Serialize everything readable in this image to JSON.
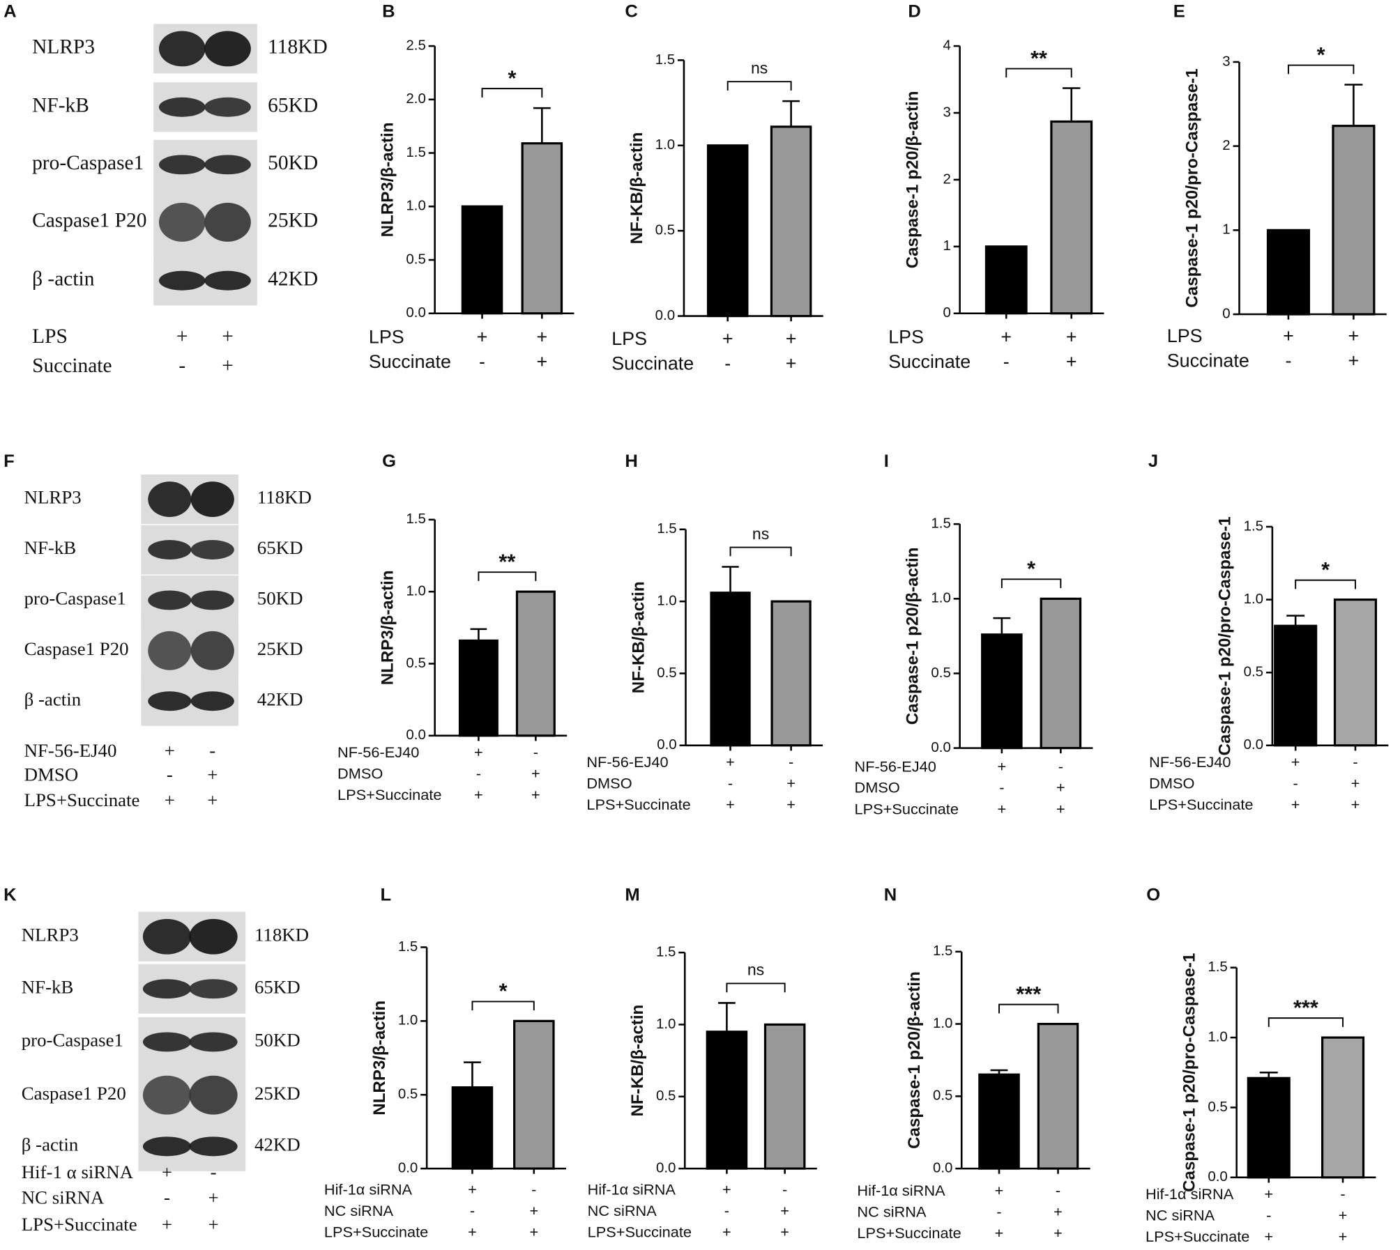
{
  "blots": [
    {
      "letter": "A",
      "proteins": [
        {
          "name": "NLRP3",
          "size": "118KD"
        },
        {
          "name": "NF-kB",
          "size": "65KD"
        },
        {
          "name": "pro-Caspase1",
          "size": "50KD"
        },
        {
          "name": "Caspase1 P20",
          "size": "25KD"
        },
        {
          "name": "β -actin",
          "size": "42KD"
        }
      ],
      "conditions": [
        {
          "name": "LPS",
          "signs": [
            "+",
            "+"
          ]
        },
        {
          "name": "Succinate",
          "signs": [
            "-",
            "+"
          ]
        }
      ]
    },
    {
      "letter": "F",
      "proteins": [
        {
          "name": "NLRP3",
          "size": "118KD"
        },
        {
          "name": "NF-kB",
          "size": "65KD"
        },
        {
          "name": "pro-Caspase1",
          "size": "50KD"
        },
        {
          "name": "Caspase1 P20",
          "size": "25KD"
        },
        {
          "name": "β -actin",
          "size": "42KD"
        }
      ],
      "conditions": [
        {
          "name": "NF-56-EJ40",
          "signs": [
            "+",
            "-"
          ]
        },
        {
          "name": "DMSO",
          "signs": [
            "-",
            "+"
          ]
        },
        {
          "name": "LPS+Succinate",
          "signs": [
            "+",
            "+"
          ]
        }
      ]
    },
    {
      "letter": "K",
      "proteins": [
        {
          "name": "NLRP3",
          "size": "118KD"
        },
        {
          "name": "NF-kB",
          "size": "65KD"
        },
        {
          "name": "pro-Caspase1",
          "size": "50KD"
        },
        {
          "name": "Caspase1 P20",
          "size": "25KD"
        },
        {
          "name": "β -actin",
          "size": "42KD"
        }
      ],
      "conditions": [
        {
          "name": "Hif-1 α siRNA",
          "signs": [
            "+",
            "-"
          ]
        },
        {
          "name": "NC siRNA",
          "signs": [
            "-",
            "+"
          ]
        },
        {
          "name": "LPS+Succinate",
          "signs": [
            "+",
            "+"
          ]
        }
      ]
    }
  ],
  "chart_data": [
    {
      "type": "bar",
      "letter": "B",
      "ylabel": "NLRP3/β-actin",
      "values": [
        1,
        1.59
      ],
      "errors": [
        null,
        0.33
      ],
      "colors": [
        "#000000",
        "#999999"
      ],
      "ylim": [
        0,
        2.5
      ],
      "yticks": [
        {
          "value": 0,
          "label": "0.0"
        },
        0.5,
        {
          "value": 1,
          "label": "1.0"
        },
        1.5,
        {
          "value": 2,
          "label": "2.0"
        },
        2.5
      ],
      "significance": "*",
      "conditions": [
        {
          "name": "LPS",
          "signs": [
            "+",
            "+"
          ]
        },
        {
          "name": "Succinate",
          "signs": [
            "-",
            "+"
          ]
        }
      ]
    },
    {
      "type": "bar",
      "letter": "C",
      "ylabel": "NF-KB/β-actin",
      "values": [
        1,
        1.11
      ],
      "errors": [
        null,
        0.15
      ],
      "colors": [
        "#000000",
        "#999999"
      ],
      "ylim": [
        0,
        1.5
      ],
      "yticks": [
        {
          "value": 0,
          "label": "0.0"
        },
        0.5,
        {
          "value": 1,
          "label": "1.0"
        },
        1.5
      ],
      "significance": "ns",
      "conditions": [
        {
          "name": "LPS",
          "signs": [
            "+",
            "+"
          ]
        },
        {
          "name": "Succinate",
          "signs": [
            "-",
            "+"
          ]
        }
      ]
    },
    {
      "type": "bar",
      "letter": "D",
      "ylabel": "Caspase-1 p20/β-actin",
      "values": [
        1,
        2.87
      ],
      "errors": [
        null,
        0.5
      ],
      "colors": [
        "#000000",
        "#999999"
      ],
      "ylim": [
        0,
        4
      ],
      "yticks": [
        0,
        1,
        2,
        3,
        4
      ],
      "significance": "**",
      "conditions": [
        {
          "name": "LPS",
          "signs": [
            "+",
            "+"
          ]
        },
        {
          "name": "Succinate",
          "signs": [
            "-",
            "+"
          ]
        }
      ]
    },
    {
      "type": "bar",
      "letter": "E",
      "ylabel": "Caspase-1 p20/pro-Caspase-1",
      "values": [
        1,
        2.24
      ],
      "errors": [
        null,
        0.49
      ],
      "colors": [
        "#000000",
        "#999999"
      ],
      "ylim": [
        0,
        3
      ],
      "yticks": [
        0,
        1,
        2,
        3
      ],
      "significance": "*",
      "conditions": [
        {
          "name": "LPS",
          "signs": [
            "+",
            "+"
          ]
        },
        {
          "name": "Succinate",
          "signs": [
            "-",
            "+"
          ]
        }
      ]
    },
    {
      "type": "bar",
      "letter": "G",
      "ylabel": "NLRP3/β-actin",
      "values": [
        0.66,
        1
      ],
      "errors": [
        0.08,
        null
      ],
      "colors": [
        "#000000",
        "#999999"
      ],
      "ylim": [
        0,
        1.5
      ],
      "yticks": [
        {
          "value": 0,
          "label": "0.0"
        },
        0.5,
        {
          "value": 1,
          "label": "1.0"
        },
        1.5
      ],
      "significance": "**",
      "conditions": [
        {
          "name": "NF-56-EJ40",
          "signs": [
            "+",
            "-"
          ]
        },
        {
          "name": "DMSO",
          "signs": [
            "-",
            "+"
          ]
        },
        {
          "name": "LPS+Succinate",
          "signs": [
            "+",
            "+"
          ]
        }
      ]
    },
    {
      "type": "bar",
      "letter": "H",
      "ylabel": "NF-KB/β-actin",
      "values": [
        1.06,
        1
      ],
      "errors": [
        0.18,
        null
      ],
      "colors": [
        "#000000",
        "#999999"
      ],
      "ylim": [
        0,
        1.5
      ],
      "yticks": [
        {
          "value": 0,
          "label": "0.0"
        },
        0.5,
        {
          "value": 1,
          "label": "1.0"
        },
        1.5
      ],
      "significance": "ns",
      "conditions": [
        {
          "name": "NF-56-EJ40",
          "signs": [
            "+",
            "-"
          ]
        },
        {
          "name": "DMSO",
          "signs": [
            "-",
            "+"
          ]
        },
        {
          "name": "LPS+Succinate",
          "signs": [
            "+",
            "+"
          ]
        }
      ]
    },
    {
      "type": "bar",
      "letter": "I",
      "ylabel": "Caspase-1 p20/β-actin",
      "values": [
        0.76,
        1
      ],
      "errors": [
        0.11,
        null
      ],
      "colors": [
        "#000000",
        "#999999"
      ],
      "ylim": [
        0,
        1.5
      ],
      "yticks": [
        {
          "value": 0,
          "label": "0.0"
        },
        0.5,
        {
          "value": 1,
          "label": "1.0"
        },
        1.5
      ],
      "significance": "*",
      "conditions": [
        {
          "name": "NF-56-EJ40",
          "signs": [
            "+",
            "-"
          ]
        },
        {
          "name": "DMSO",
          "signs": [
            "-",
            "+"
          ]
        },
        {
          "name": "LPS+Succinate",
          "signs": [
            "+",
            "+"
          ]
        }
      ]
    },
    {
      "type": "bar",
      "letter": "J",
      "ylabel": "Caspase-1 p20/pro-Caspase-1",
      "values": [
        0.82,
        1
      ],
      "errors": [
        0.07,
        null
      ],
      "colors": [
        "#000000",
        "#a6a6a6"
      ],
      "ylim": [
        0,
        1.5
      ],
      "yticks": [
        {
          "value": 0,
          "label": "0.0"
        },
        0.5,
        {
          "value": 1,
          "label": "1.0"
        },
        1.5
      ],
      "significance": "*",
      "conditions": [
        {
          "name": "NF-56-EJ40",
          "signs": [
            "+",
            "-"
          ]
        },
        {
          "name": "DMSO",
          "signs": [
            "-",
            "+"
          ]
        },
        {
          "name": "LPS+Succinate",
          "signs": [
            "+",
            "+"
          ]
        }
      ]
    },
    {
      "type": "bar",
      "letter": "L",
      "ylabel": "NLRP3/β-actin",
      "values": [
        0.55,
        1
      ],
      "errors": [
        0.17,
        null
      ],
      "colors": [
        "#000000",
        "#999999"
      ],
      "ylim": [
        0,
        1.5
      ],
      "yticks": [
        {
          "value": 0,
          "label": "0.0"
        },
        0.5,
        {
          "value": 1,
          "label": "1.0"
        },
        1.5
      ],
      "significance": "*",
      "conditions": [
        {
          "name": "Hif-1α siRNA",
          "signs": [
            "+",
            "-"
          ]
        },
        {
          "name": "NC siRNA",
          "signs": [
            "-",
            "+"
          ]
        },
        {
          "name": "LPS+Succinate",
          "signs": [
            "+",
            "+"
          ]
        }
      ]
    },
    {
      "type": "bar",
      "letter": "M",
      "ylabel": "NF-KB/β-actin",
      "values": [
        0.95,
        1
      ],
      "errors": [
        0.2,
        null
      ],
      "colors": [
        "#000000",
        "#999999"
      ],
      "ylim": [
        0,
        1.5
      ],
      "yticks": [
        {
          "value": 0,
          "label": "0.0"
        },
        0.5,
        {
          "value": 1,
          "label": "1.0"
        },
        1.5
      ],
      "significance": "ns",
      "conditions": [
        {
          "name": "Hif-1α siRNA",
          "signs": [
            "+",
            "-"
          ]
        },
        {
          "name": "NC siRNA",
          "signs": [
            "-",
            "+"
          ]
        },
        {
          "name": "LPS+Succinate",
          "signs": [
            "+",
            "+"
          ]
        }
      ]
    },
    {
      "type": "bar",
      "letter": "N",
      "ylabel": "Caspase-1 p20/β-actin",
      "values": [
        0.65,
        1
      ],
      "errors": [
        0.03,
        null
      ],
      "colors": [
        "#000000",
        "#999999"
      ],
      "ylim": [
        0,
        1.5
      ],
      "yticks": [
        {
          "value": 0,
          "label": "0.0"
        },
        0.5,
        {
          "value": 1,
          "label": "1.0"
        },
        1.5
      ],
      "significance": "***",
      "conditions": [
        {
          "name": "Hif-1α siRNA",
          "signs": [
            "+",
            "-"
          ]
        },
        {
          "name": "NC siRNA",
          "signs": [
            "-",
            "+"
          ]
        },
        {
          "name": "LPS+Succinate",
          "signs": [
            "+",
            "+"
          ]
        }
      ]
    },
    {
      "type": "bar",
      "letter": "O",
      "ylabel": "Caspase-1 p20/pro-Caspase-1",
      "values": [
        0.71,
        1
      ],
      "errors": [
        0.04,
        null
      ],
      "colors": [
        "#000000",
        "#a6a6a6"
      ],
      "ylim": [
        0,
        1.5
      ],
      "yticks": [
        {
          "value": 0,
          "label": "0.0"
        },
        0.5,
        {
          "value": 1,
          "label": "1.0"
        },
        1.5
      ],
      "significance": "***",
      "conditions": [
        {
          "name": "Hif-1α siRNA",
          "signs": [
            "+",
            "-"
          ]
        },
        {
          "name": "NC siRNA",
          "signs": [
            "-",
            "+"
          ]
        },
        {
          "name": "LPS+Succinate",
          "signs": [
            "+",
            "+"
          ]
        }
      ]
    }
  ]
}
